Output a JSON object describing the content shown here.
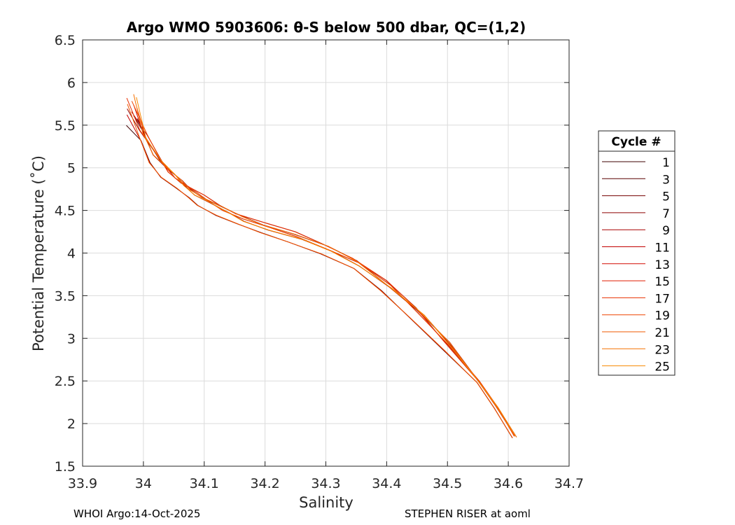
{
  "chart_data": {
    "type": "line",
    "title": "Argo WMO 5903606: θ-S below 500 dbar,  QC=(1,2)",
    "xlabel": "Salinity",
    "ylabel": "Potential Temperature (˚C)",
    "xlim": [
      33.9,
      34.7
    ],
    "ylim": [
      1.5,
      6.5
    ],
    "xticks": [
      "33.9",
      "34",
      "34.1",
      "34.2",
      "34.3",
      "34.4",
      "34.5",
      "34.6",
      "34.7"
    ],
    "yticks": [
      "1.5",
      "2",
      "2.5",
      "3",
      "3.5",
      "4",
      "4.5",
      "5",
      "5.5",
      "6",
      "6.5"
    ],
    "grid": true,
    "legend": {
      "title": "Cycle #",
      "placement": "right",
      "entries": [
        "1",
        "3",
        "5",
        "7",
        "9",
        "11",
        "13",
        "15",
        "17",
        "19",
        "21",
        "23",
        "25"
      ]
    },
    "series_colors": [
      "#3f0000",
      "#5a0000",
      "#740000",
      "#8e0000",
      "#a80000",
      "#c20000",
      "#d40a00",
      "#e01c00",
      "#e83000",
      "#ee4400",
      "#f25800",
      "#f57000",
      "#f78a00"
    ],
    "base_curve": [
      [
        33.98,
        5.72
      ],
      [
        34.0,
        5.38
      ],
      [
        34.02,
        5.12
      ],
      [
        34.04,
        4.95
      ],
      [
        34.06,
        4.82
      ],
      [
        34.08,
        4.71
      ],
      [
        34.1,
        4.62
      ],
      [
        34.13,
        4.5
      ],
      [
        34.16,
        4.4
      ],
      [
        34.2,
        4.3
      ],
      [
        34.25,
        4.19
      ],
      [
        34.3,
        4.05
      ],
      [
        34.35,
        3.88
      ],
      [
        34.4,
        3.62
      ],
      [
        34.45,
        3.3
      ],
      [
        34.5,
        2.92
      ],
      [
        34.55,
        2.5
      ],
      [
        34.58,
        2.2
      ],
      [
        34.61,
        1.85
      ]
    ]
  },
  "footer": {
    "left": "WHOI Argo:14-Oct-2025",
    "right": "STEPHEN RISER at aoml"
  }
}
